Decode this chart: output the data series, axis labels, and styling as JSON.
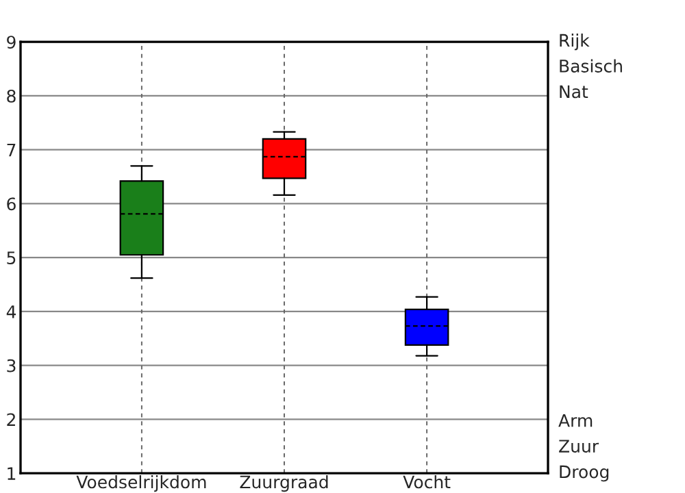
{
  "chart_data": {
    "type": "box",
    "categories": [
      "Voedselrijkdom",
      "Zuurgraad",
      "Vocht"
    ],
    "boxes": [
      {
        "low": 4.62,
        "q1": 5.05,
        "median": 5.81,
        "q3": 6.42,
        "high": 6.7
      },
      {
        "low": 6.16,
        "q1": 6.47,
        "median": 6.87,
        "q3": 7.2,
        "high": 7.33
      },
      {
        "low": 3.18,
        "q1": 3.38,
        "median": 3.73,
        "q3": 4.04,
        "high": 4.27
      }
    ],
    "colors": [
      "#1a7f1a",
      "#ff0000",
      "#0000ff"
    ],
    "ylim": [
      1,
      9
    ],
    "yticks": [
      1,
      2,
      3,
      4,
      5,
      6,
      7,
      8,
      9
    ],
    "grid": true,
    "line_style": "dashed",
    "annotations": [
      "Rijk",
      "Basisch",
      "Nat",
      "Arm",
      "Zuur",
      "Droog"
    ]
  }
}
